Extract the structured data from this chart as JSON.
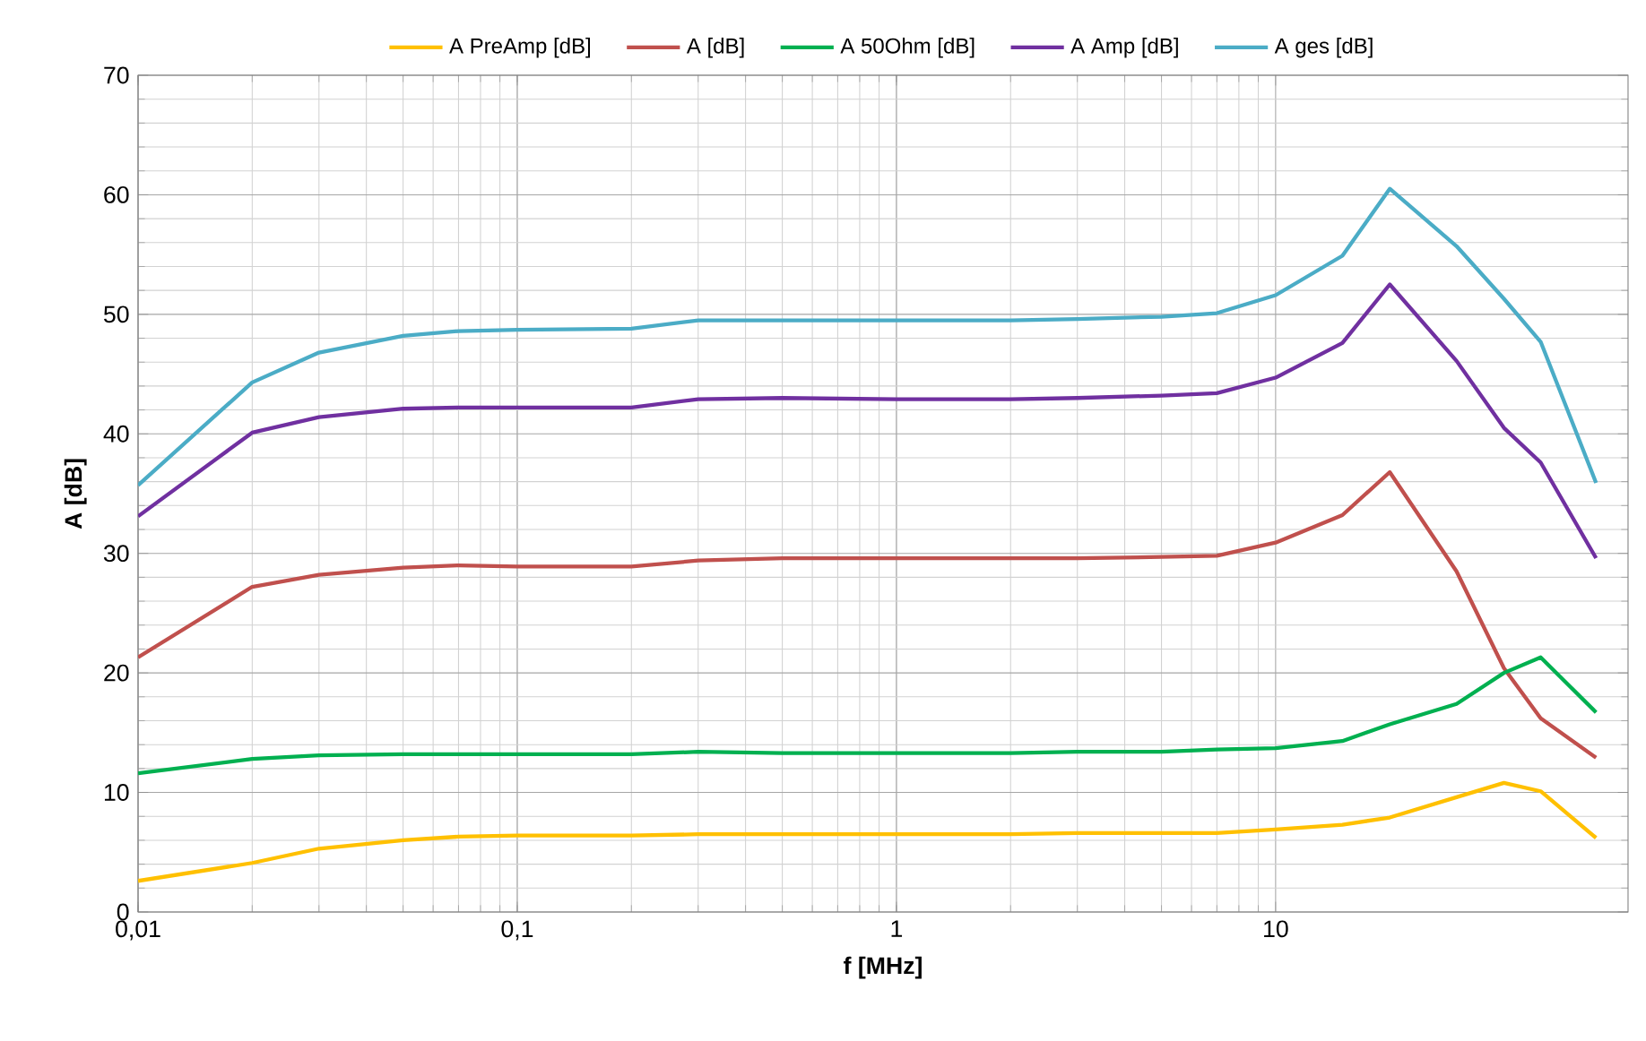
{
  "chart_data": {
    "type": "line",
    "xlabel": "f [MHz]",
    "ylabel": "A [dB]",
    "log": "x",
    "x": [
      0.01,
      0.02,
      0.03,
      0.05,
      0.07,
      0.1,
      0.2,
      0.3,
      0.5,
      1,
      2,
      3,
      5,
      7,
      10,
      15,
      20,
      30,
      40,
      50,
      70
    ],
    "xlim": [
      0.01,
      85
    ],
    "xticks": [
      {
        "value": 0.01,
        "label": "0,01"
      },
      {
        "value": 0.1,
        "label": "0,1"
      },
      1,
      10
    ],
    "ylim": [
      0,
      70
    ],
    "yticks": [
      0,
      10,
      20,
      30,
      40,
      50,
      60,
      70
    ],
    "grid": true,
    "legend": "top",
    "marker": "none",
    "line_style": "solid",
    "series": [
      {
        "name": "A PreAmp [dB]",
        "color": "#ffc000",
        "values": [
          2.6,
          4.1,
          5.3,
          6.0,
          6.3,
          6.4,
          6.4,
          6.5,
          6.5,
          6.5,
          6.5,
          6.6,
          6.6,
          6.6,
          6.9,
          7.3,
          7.9,
          9.6,
          10.8,
          10.1,
          6.2
        ]
      },
      {
        "name": "A [dB]",
        "color": "#c0504d",
        "values": [
          21.3,
          27.2,
          28.2,
          28.8,
          29.0,
          28.9,
          28.9,
          29.4,
          29.6,
          29.6,
          29.6,
          29.6,
          29.7,
          29.8,
          30.9,
          33.2,
          36.8,
          28.5,
          20.4,
          16.2,
          12.9
        ]
      },
      {
        "name": "A 50Ohm [dB]",
        "color": "#00b050",
        "values": [
          11.6,
          12.8,
          13.1,
          13.2,
          13.2,
          13.2,
          13.2,
          13.4,
          13.3,
          13.3,
          13.3,
          13.4,
          13.4,
          13.6,
          13.7,
          14.3,
          15.7,
          17.4,
          20.0,
          21.3,
          16.7
        ]
      },
      {
        "name": "A Amp [dB]",
        "color": "#7030a0",
        "values": [
          33.1,
          40.1,
          41.4,
          42.1,
          42.2,
          42.2,
          42.2,
          42.9,
          43.0,
          42.9,
          42.9,
          43.0,
          43.2,
          43.4,
          44.7,
          47.6,
          52.5,
          46.1,
          40.5,
          37.6,
          29.6
        ]
      },
      {
        "name": "A ges [dB]",
        "color": "#4bacc6",
        "values": [
          35.7,
          44.3,
          46.8,
          48.2,
          48.6,
          48.7,
          48.8,
          49.5,
          49.5,
          49.5,
          49.5,
          49.6,
          49.8,
          50.1,
          51.6,
          54.9,
          60.5,
          55.7,
          51.3,
          47.7,
          35.9
        ]
      }
    ]
  }
}
